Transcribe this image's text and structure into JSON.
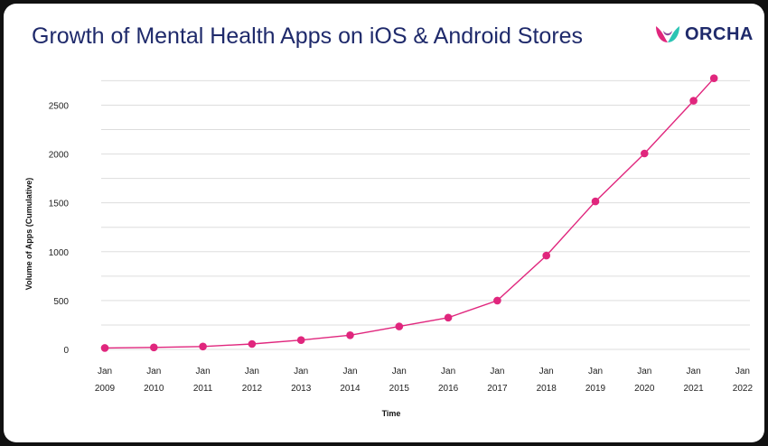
{
  "header": {
    "title": "Growth of Mental Health Apps on iOS & Android Stores",
    "logo_text": "ORCHA"
  },
  "colors": {
    "title": "#1f2a6b",
    "series": "#e0267d",
    "grid": "#dddddd",
    "logo_magenta": "#e0267d",
    "logo_teal": "#2cc4b4"
  },
  "chart_data": {
    "type": "line",
    "xlabel": "Time",
    "ylabel": "Volume of Apps (Cumulative)",
    "ylim": [
      0,
      2800
    ],
    "yticks": [
      0,
      500,
      1000,
      1500,
      2000,
      2500
    ],
    "grid": true,
    "x_ticks": [
      {
        "top": "Jan",
        "bottom": "2009"
      },
      {
        "top": "Jan",
        "bottom": "2010"
      },
      {
        "top": "Jan",
        "bottom": "2011"
      },
      {
        "top": "Jan",
        "bottom": "2012"
      },
      {
        "top": "Jan",
        "bottom": "2013"
      },
      {
        "top": "Jan",
        "bottom": "2014"
      },
      {
        "top": "Jan",
        "bottom": "2015"
      },
      {
        "top": "Jan",
        "bottom": "2016"
      },
      {
        "top": "Jan",
        "bottom": "2017"
      },
      {
        "top": "Jan",
        "bottom": "2018"
      },
      {
        "top": "Jan",
        "bottom": "2019"
      },
      {
        "top": "Jan",
        "bottom": "2020"
      },
      {
        "top": "Jan",
        "bottom": "2021"
      },
      {
        "top": "Jan",
        "bottom": "2022"
      }
    ],
    "x": [
      "2009-01",
      "2010-01",
      "2011-01",
      "2012-01",
      "2013-01",
      "2014-01",
      "2015-01",
      "2016-01",
      "2017-01",
      "2018-01",
      "2019-01",
      "2020-01",
      "2021-01",
      "2021-06"
    ],
    "series": [
      {
        "values": [
          15,
          20,
          30,
          55,
          95,
          145,
          235,
          325,
          500,
          960,
          1515,
          2005,
          2545,
          2775
        ]
      }
    ]
  }
}
